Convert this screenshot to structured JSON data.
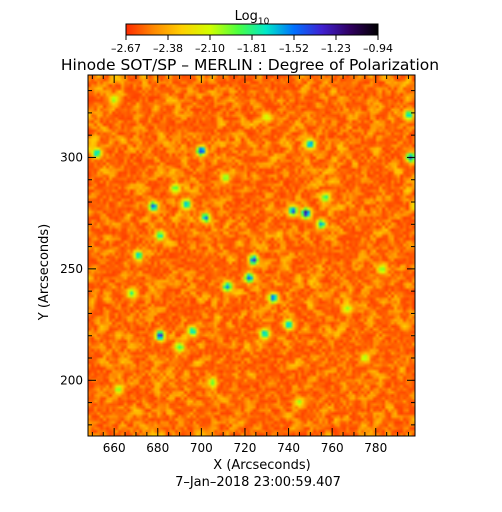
{
  "chart_data": {
    "type": "heatmap",
    "title": "Hinode SOT/SP – MERLIN : Degree of Polarization",
    "subtitle": "7–Jan–2018 23:00:59.407",
    "xlabel": "X (Arcseconds)",
    "ylabel": "Y (Arcseconds)",
    "xlim": [
      648,
      798
    ],
    "ylim": [
      175,
      337
    ],
    "x_ticks": [
      660,
      680,
      700,
      720,
      740,
      760,
      780
    ],
    "y_ticks": [
      200,
      250,
      300
    ],
    "grid": false,
    "colorbar": {
      "label": "Log",
      "label_subscript": "10",
      "placement": "top",
      "range": [
        -2.67,
        -0.94
      ],
      "ticks": [
        "–2.67",
        "–2.38",
        "–2.10",
        "–1.81",
        "–1.52",
        "–1.23",
        "–0.94"
      ],
      "colors": [
        "#ff2a00",
        "#ff8a00",
        "#ffd000",
        "#d2ff00",
        "#4cff40",
        "#00e8c8",
        "#0070ff",
        "#4020d0",
        "#300060",
        "#000000"
      ]
    },
    "background_value": -2.55,
    "features": [
      {
        "x": 700,
        "y": 303,
        "value": -1.35
      },
      {
        "x": 678,
        "y": 278,
        "value": -1.45
      },
      {
        "x": 693,
        "y": 279,
        "value": -1.55
      },
      {
        "x": 702,
        "y": 273,
        "value": -1.5
      },
      {
        "x": 748,
        "y": 275,
        "value": -1.15
      },
      {
        "x": 742,
        "y": 276,
        "value": -1.4
      },
      {
        "x": 750,
        "y": 306,
        "value": -1.45
      },
      {
        "x": 755,
        "y": 270,
        "value": -1.6
      },
      {
        "x": 724,
        "y": 254,
        "value": -1.3
      },
      {
        "x": 722,
        "y": 246,
        "value": -1.45
      },
      {
        "x": 671,
        "y": 256,
        "value": -1.6
      },
      {
        "x": 681,
        "y": 265,
        "value": -1.7
      },
      {
        "x": 712,
        "y": 242,
        "value": -1.5
      },
      {
        "x": 733,
        "y": 237,
        "value": -1.45
      },
      {
        "x": 740,
        "y": 225,
        "value": -1.6
      },
      {
        "x": 681,
        "y": 220,
        "value": -1.3
      },
      {
        "x": 696,
        "y": 222,
        "value": -1.6
      },
      {
        "x": 690,
        "y": 215,
        "value": -1.8
      },
      {
        "x": 729,
        "y": 221,
        "value": -1.55
      },
      {
        "x": 668,
        "y": 239,
        "value": -1.8
      },
      {
        "x": 796,
        "y": 300,
        "value": -1.45
      },
      {
        "x": 795,
        "y": 319,
        "value": -1.6
      },
      {
        "x": 652,
        "y": 302,
        "value": -1.6
      },
      {
        "x": 757,
        "y": 282,
        "value": -1.75
      },
      {
        "x": 711,
        "y": 291,
        "value": -1.9
      },
      {
        "x": 688,
        "y": 286,
        "value": -1.85
      },
      {
        "x": 783,
        "y": 250,
        "value": -1.9
      },
      {
        "x": 767,
        "y": 232,
        "value": -1.95
      },
      {
        "x": 705,
        "y": 199,
        "value": -1.9
      },
      {
        "x": 662,
        "y": 196,
        "value": -1.95
      },
      {
        "x": 745,
        "y": 190,
        "value": -2.0
      },
      {
        "x": 775,
        "y": 210,
        "value": -2.0
      },
      {
        "x": 660,
        "y": 326,
        "value": -2.0
      },
      {
        "x": 730,
        "y": 318,
        "value": -2.0
      }
    ]
  }
}
